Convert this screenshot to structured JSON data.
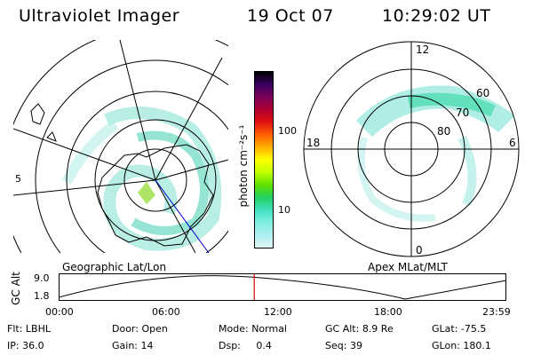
{
  "header": {
    "title": "Ultraviolet Imager",
    "date": "19 Oct 07",
    "time": "10:29:02 UT"
  },
  "left_map": {
    "caption": "Geographic Lat/Lon",
    "edge_mark": "5"
  },
  "right_map": {
    "caption": "Apex MLat/MLT",
    "mlt_labels": [
      "12",
      "6",
      "0",
      "18"
    ],
    "mlat_labels": [
      "60",
      "70",
      "80"
    ]
  },
  "colorbar": {
    "unit_label": "photon cm⁻²s⁻¹",
    "tick_labels": [
      "100",
      "10"
    ],
    "colors": [
      "#000000",
      "#3a0060",
      "#7a0058",
      "#b00030",
      "#e01010",
      "#ff6000",
      "#ffb000",
      "#ffff00",
      "#c0ff00",
      "#60e000",
      "#20d060",
      "#40e0c0",
      "#80f0e0",
      "#b0f0f0",
      "#e0f4f4"
    ]
  },
  "timeline": {
    "y_axis_label": "GC Alt",
    "y_ticks": [
      "9.0",
      "1.8"
    ],
    "x_ticks": [
      "00:00",
      "06:00",
      "12:00",
      "18:00",
      "23:59"
    ],
    "current_time_fraction": 0.437,
    "marker_color": "#e00000"
  },
  "status": {
    "row1": [
      {
        "key": "Flt:",
        "value": "LBHL"
      },
      {
        "key": "Door:",
        "value": "Open"
      },
      {
        "key": "Mode:",
        "value": "Normal"
      },
      {
        "key": "GC Alt:",
        "value": "8.9 Re"
      },
      {
        "key": "GLat:",
        "value": "-75.5"
      }
    ],
    "row2": [
      {
        "key": "IP:",
        "value": "36.0"
      },
      {
        "key": "Gain:",
        "value": "14"
      },
      {
        "key": "Dsp:",
        "value": "0.4"
      },
      {
        "key": "Seq:",
        "value": "39"
      },
      {
        "key": "GLon:",
        "value": "180.1"
      }
    ]
  }
}
